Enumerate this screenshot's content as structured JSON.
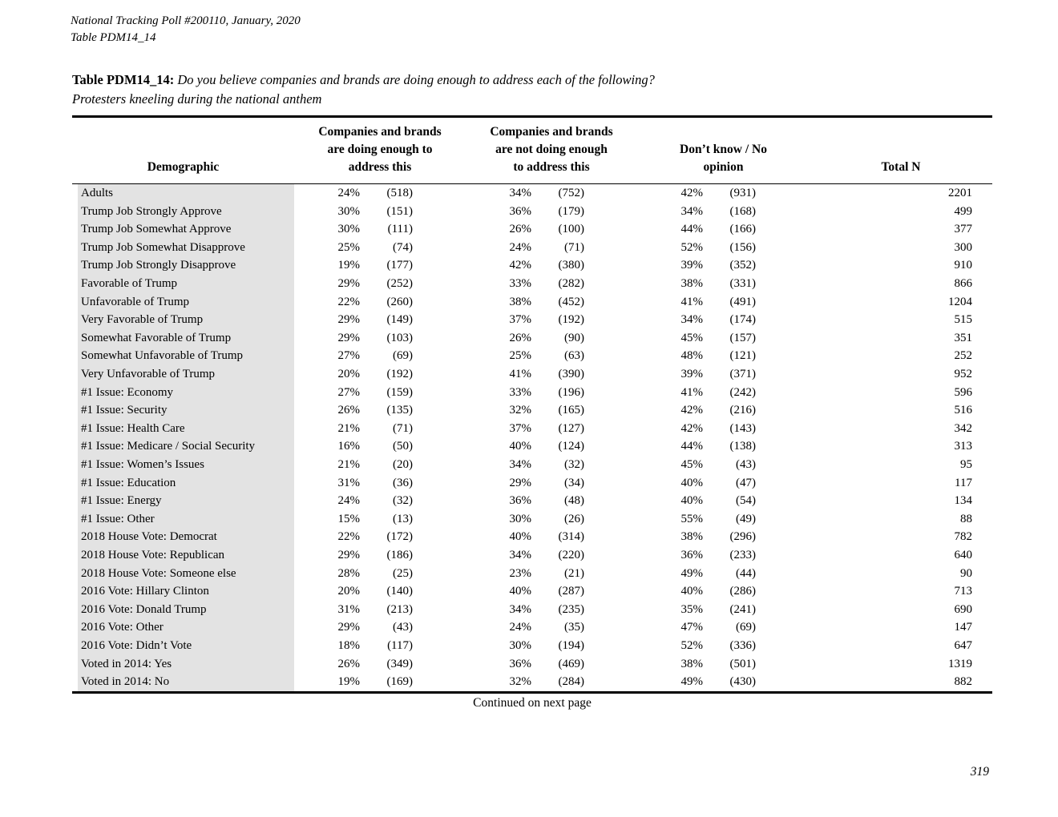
{
  "page": {
    "header_line1": "National Tracking Poll #200110, January, 2020",
    "header_line2": "Table PDM14_14",
    "continued_note": "Continued on next page",
    "page_number": "319"
  },
  "colors": {
    "row_label_bg": "#e3e3e3",
    "rule_color": "#000000",
    "text_color": "#000000"
  },
  "table": {
    "title_label": "Table PDM14_14:",
    "title_question": "Do you believe companies and brands are doing enough to address each of the following?",
    "title_subject": "Protesters kneeling during the national anthem",
    "columns": {
      "demographic": "Demographic",
      "col1_lines": [
        "Companies and brands",
        "are doing enough to",
        "address this"
      ],
      "col2_lines": [
        "Companies and brands",
        "are not doing enough",
        "to address this"
      ],
      "col3_lines": [
        "Don’t know / No",
        "opinion"
      ],
      "total": "Total N"
    },
    "rows": [
      {
        "label": "Adults",
        "pct1": "24%",
        "n1": "(518)",
        "pct2": "34%",
        "n2": "(752)",
        "pct3": "42%",
        "n3": "(931)",
        "total": "2201"
      },
      {
        "label": "Trump Job Strongly Approve",
        "pct1": "30%",
        "n1": "(151)",
        "pct2": "36%",
        "n2": "(179)",
        "pct3": "34%",
        "n3": "(168)",
        "total": "499"
      },
      {
        "label": "Trump Job Somewhat Approve",
        "pct1": "30%",
        "n1": "(111)",
        "pct2": "26%",
        "n2": "(100)",
        "pct3": "44%",
        "n3": "(166)",
        "total": "377"
      },
      {
        "label": "Trump Job Somewhat Disapprove",
        "pct1": "25%",
        "n1": "(74)",
        "pct2": "24%",
        "n2": "(71)",
        "pct3": "52%",
        "n3": "(156)",
        "total": "300"
      },
      {
        "label": "Trump Job Strongly Disapprove",
        "pct1": "19%",
        "n1": "(177)",
        "pct2": "42%",
        "n2": "(380)",
        "pct3": "39%",
        "n3": "(352)",
        "total": "910"
      },
      {
        "label": "Favorable of Trump",
        "pct1": "29%",
        "n1": "(252)",
        "pct2": "33%",
        "n2": "(282)",
        "pct3": "38%",
        "n3": "(331)",
        "total": "866"
      },
      {
        "label": "Unfavorable of Trump",
        "pct1": "22%",
        "n1": "(260)",
        "pct2": "38%",
        "n2": "(452)",
        "pct3": "41%",
        "n3": "(491)",
        "total": "1204"
      },
      {
        "label": "Very Favorable of Trump",
        "pct1": "29%",
        "n1": "(149)",
        "pct2": "37%",
        "n2": "(192)",
        "pct3": "34%",
        "n3": "(174)",
        "total": "515"
      },
      {
        "label": "Somewhat Favorable of Trump",
        "pct1": "29%",
        "n1": "(103)",
        "pct2": "26%",
        "n2": "(90)",
        "pct3": "45%",
        "n3": "(157)",
        "total": "351"
      },
      {
        "label": "Somewhat Unfavorable of Trump",
        "pct1": "27%",
        "n1": "(69)",
        "pct2": "25%",
        "n2": "(63)",
        "pct3": "48%",
        "n3": "(121)",
        "total": "252"
      },
      {
        "label": "Very Unfavorable of Trump",
        "pct1": "20%",
        "n1": "(192)",
        "pct2": "41%",
        "n2": "(390)",
        "pct3": "39%",
        "n3": "(371)",
        "total": "952"
      },
      {
        "label": "#1 Issue: Economy",
        "pct1": "27%",
        "n1": "(159)",
        "pct2": "33%",
        "n2": "(196)",
        "pct3": "41%",
        "n3": "(242)",
        "total": "596"
      },
      {
        "label": "#1 Issue: Security",
        "pct1": "26%",
        "n1": "(135)",
        "pct2": "32%",
        "n2": "(165)",
        "pct3": "42%",
        "n3": "(216)",
        "total": "516"
      },
      {
        "label": "#1 Issue: Health Care",
        "pct1": "21%",
        "n1": "(71)",
        "pct2": "37%",
        "n2": "(127)",
        "pct3": "42%",
        "n3": "(143)",
        "total": "342"
      },
      {
        "label": "#1 Issue: Medicare / Social Security",
        "pct1": "16%",
        "n1": "(50)",
        "pct2": "40%",
        "n2": "(124)",
        "pct3": "44%",
        "n3": "(138)",
        "total": "313"
      },
      {
        "label": "#1 Issue: Women’s Issues",
        "pct1": "21%",
        "n1": "(20)",
        "pct2": "34%",
        "n2": "(32)",
        "pct3": "45%",
        "n3": "(43)",
        "total": "95"
      },
      {
        "label": "#1 Issue: Education",
        "pct1": "31%",
        "n1": "(36)",
        "pct2": "29%",
        "n2": "(34)",
        "pct3": "40%",
        "n3": "(47)",
        "total": "117"
      },
      {
        "label": "#1 Issue: Energy",
        "pct1": "24%",
        "n1": "(32)",
        "pct2": "36%",
        "n2": "(48)",
        "pct3": "40%",
        "n3": "(54)",
        "total": "134"
      },
      {
        "label": "#1 Issue: Other",
        "pct1": "15%",
        "n1": "(13)",
        "pct2": "30%",
        "n2": "(26)",
        "pct3": "55%",
        "n3": "(49)",
        "total": "88"
      },
      {
        "label": "2018 House Vote: Democrat",
        "pct1": "22%",
        "n1": "(172)",
        "pct2": "40%",
        "n2": "(314)",
        "pct3": "38%",
        "n3": "(296)",
        "total": "782"
      },
      {
        "label": "2018 House Vote: Republican",
        "pct1": "29%",
        "n1": "(186)",
        "pct2": "34%",
        "n2": "(220)",
        "pct3": "36%",
        "n3": "(233)",
        "total": "640"
      },
      {
        "label": "2018 House Vote: Someone else",
        "pct1": "28%",
        "n1": "(25)",
        "pct2": "23%",
        "n2": "(21)",
        "pct3": "49%",
        "n3": "(44)",
        "total": "90"
      },
      {
        "label": "2016 Vote: Hillary Clinton",
        "pct1": "20%",
        "n1": "(140)",
        "pct2": "40%",
        "n2": "(287)",
        "pct3": "40%",
        "n3": "(286)",
        "total": "713"
      },
      {
        "label": "2016 Vote: Donald Trump",
        "pct1": "31%",
        "n1": "(213)",
        "pct2": "34%",
        "n2": "(235)",
        "pct3": "35%",
        "n3": "(241)",
        "total": "690"
      },
      {
        "label": "2016 Vote: Other",
        "pct1": "29%",
        "n1": "(43)",
        "pct2": "24%",
        "n2": "(35)",
        "pct3": "47%",
        "n3": "(69)",
        "total": "147"
      },
      {
        "label": "2016 Vote: Didn’t Vote",
        "pct1": "18%",
        "n1": "(117)",
        "pct2": "30%",
        "n2": "(194)",
        "pct3": "52%",
        "n3": "(336)",
        "total": "647"
      },
      {
        "label": "Voted in 2014: Yes",
        "pct1": "26%",
        "n1": "(349)",
        "pct2": "36%",
        "n2": "(469)",
        "pct3": "38%",
        "n3": "(501)",
        "total": "1319"
      },
      {
        "label": "Voted in 2014: No",
        "pct1": "19%",
        "n1": "(169)",
        "pct2": "32%",
        "n2": "(284)",
        "pct3": "49%",
        "n3": "(430)",
        "total": "882"
      }
    ]
  }
}
